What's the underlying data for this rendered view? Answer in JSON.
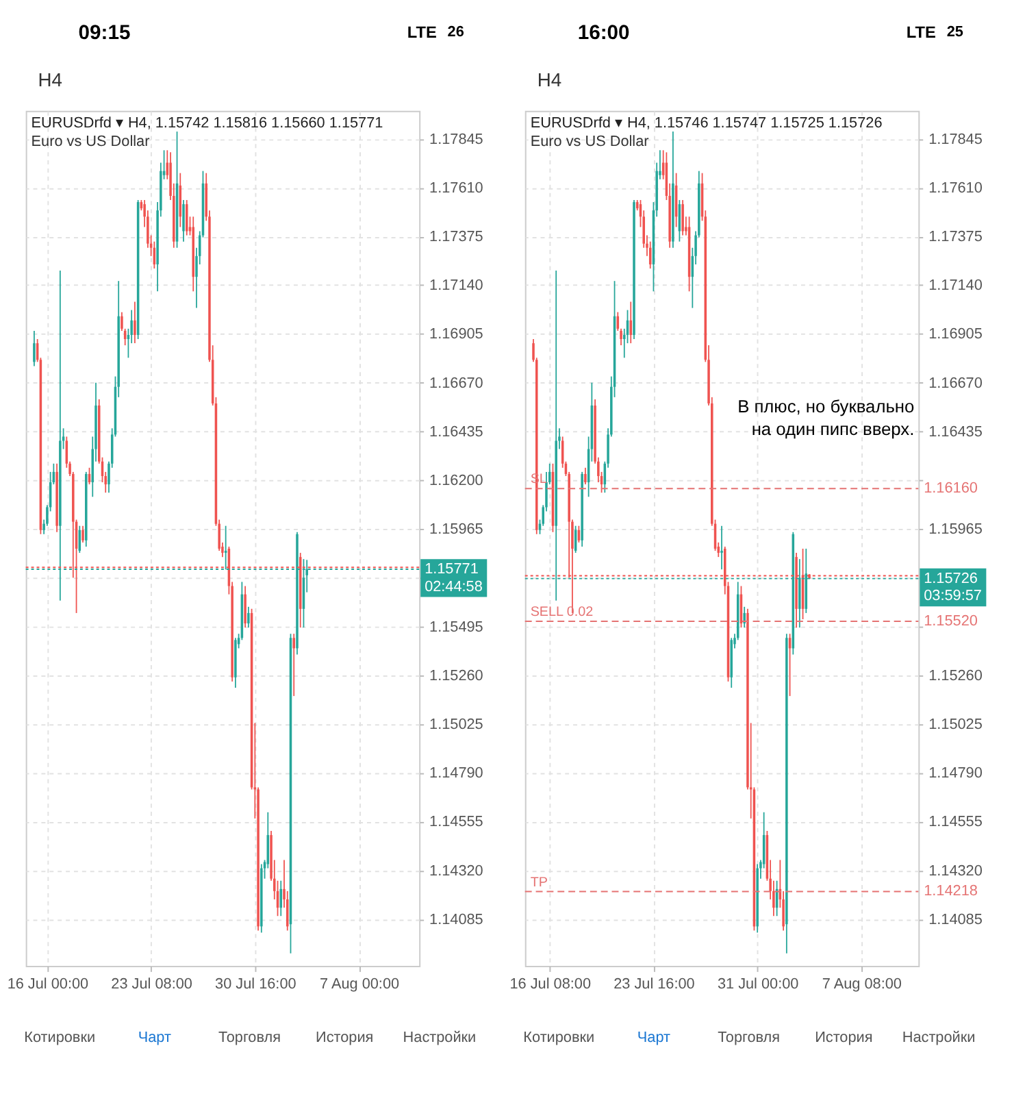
{
  "chart_data": [
    {
      "type": "candlestick",
      "title": "EURUSDrfd ▾ H4, 1.15742 1.15816 1.15660 1.15771",
      "subtitle": "Euro vs US Dollar",
      "categories": [
        null,
        null,
        null,
        null,
        "16 Jul 00:00",
        null,
        null,
        null,
        null,
        null,
        null,
        null,
        null,
        null,
        null,
        null,
        null,
        null,
        null,
        null,
        null,
        null,
        null,
        null,
        null,
        null,
        null,
        null,
        null,
        null,
        null,
        null,
        null,
        null,
        null,
        null,
        "23 Jul 08:00",
        null,
        null,
        null,
        null,
        null,
        null,
        null,
        null,
        null,
        null,
        null,
        null,
        null,
        null,
        null,
        null,
        null,
        null,
        null,
        null,
        null,
        null,
        null,
        null,
        null,
        null,
        null,
        null,
        null,
        null,
        null,
        "30 Jul 16:00",
        null,
        null,
        null,
        null,
        null,
        null,
        null,
        null,
        null,
        null,
        null,
        null,
        null,
        null,
        null,
        null,
        null,
        null,
        null,
        null,
        null,
        null,
        null,
        null,
        null,
        null,
        null,
        null,
        null,
        null,
        null,
        "7 Aug 00:00",
        null,
        null,
        null,
        null,
        null,
        null,
        null,
        null,
        null,
        null,
        null,
        null,
        null,
        null,
        null,
        null
      ],
      "ohlc": [
        [
          1.1677,
          1.1692,
          1.1675,
          1.1686
        ],
        [
          1.1686,
          1.1688,
          1.1677,
          1.1678
        ],
        [
          1.1678,
          1.1679,
          1.1594,
          1.1596
        ],
        [
          1.1596,
          1.1601,
          1.1594,
          1.1599
        ],
        [
          1.1599,
          1.1608,
          1.1598,
          1.1607
        ],
        [
          1.1607,
          1.1624,
          1.1605,
          1.1619
        ],
        [
          1.1619,
          1.1628,
          1.1618,
          1.1624
        ],
        [
          1.1624,
          1.1628,
          1.1595,
          1.1598
        ],
        [
          1.1598,
          1.1721,
          1.1562,
          1.1639
        ],
        [
          1.1639,
          1.1645,
          1.1635,
          1.1641
        ],
        [
          1.1639,
          1.1641,
          1.1626,
          1.1628
        ],
        [
          1.1628,
          1.1629,
          1.1622,
          1.1623
        ],
        [
          1.1623,
          1.1624,
          1.1573,
          1.16
        ],
        [
          1.16,
          1.1601,
          1.1556,
          1.1587
        ],
        [
          1.1586,
          1.1598,
          1.1585,
          1.1596
        ],
        [
          1.1596,
          1.1598,
          1.159,
          1.1591
        ],
        [
          1.1591,
          1.1624,
          1.1588,
          1.1623
        ],
        [
          1.1623,
          1.1626,
          1.1618,
          1.1619
        ],
        [
          1.1619,
          1.1641,
          1.1612,
          1.1635
        ],
        [
          1.1635,
          1.1667,
          1.1629,
          1.1656
        ],
        [
          1.1656,
          1.1659,
          1.1628,
          1.1629
        ],
        [
          1.1629,
          1.1631,
          1.1619,
          1.1622
        ],
        [
          1.1622,
          1.1624,
          1.1614,
          1.1618
        ],
        [
          1.1618,
          1.1629,
          1.1614,
          1.1628
        ],
        [
          1.1628,
          1.1645,
          1.1626,
          1.1642
        ],
        [
          1.1642,
          1.167,
          1.1641,
          1.1665
        ],
        [
          1.1665,
          1.1716,
          1.166,
          1.1699
        ],
        [
          1.1699,
          1.1701,
          1.1692,
          1.1693
        ],
        [
          1.1692,
          1.1693,
          1.1685,
          1.1688
        ],
        [
          1.1688,
          1.1693,
          1.1679,
          1.169
        ],
        [
          1.169,
          1.1702,
          1.1686,
          1.1697
        ],
        [
          1.1697,
          1.1706,
          1.1686,
          1.169
        ],
        [
          1.169,
          1.1755,
          1.1688,
          1.1754
        ],
        [
          1.1754,
          1.1755,
          1.175,
          1.1751
        ],
        [
          1.1753,
          1.1755,
          1.1742,
          1.1747
        ],
        [
          1.1747,
          1.175,
          1.1732,
          1.1734
        ],
        [
          1.1734,
          1.1738,
          1.1728,
          1.1732
        ],
        [
          1.1732,
          1.1735,
          1.1722,
          1.1724
        ],
        [
          1.1724,
          1.1754,
          1.1711,
          1.175
        ],
        [
          1.175,
          1.1773,
          1.1747,
          1.1769
        ],
        [
          1.1767,
          1.1779,
          1.1765,
          1.1769
        ],
        [
          1.1773,
          1.1779,
          1.1765,
          1.1767
        ],
        [
          1.1773,
          1.1778,
          1.1755,
          1.1757
        ],
        [
          1.1757,
          1.1763,
          1.1732,
          1.1735
        ],
        [
          1.1735,
          1.1788,
          1.1732,
          1.1763
        ],
        [
          1.1762,
          1.1768,
          1.1742,
          1.1747
        ],
        [
          1.174,
          1.1755,
          1.1735,
          1.1753
        ],
        [
          1.1753,
          1.1755,
          1.1738,
          1.174
        ],
        [
          1.1742,
          1.1747,
          1.1738,
          1.174
        ],
        [
          1.1742,
          1.1747,
          1.1711,
          1.1718
        ],
        [
          1.1718,
          1.1732,
          1.1703,
          1.1728
        ],
        [
          1.1728,
          1.174,
          1.1724,
          1.1738
        ],
        [
          1.1738,
          1.1769,
          1.1737,
          1.1763
        ],
        [
          1.1763,
          1.1768,
          1.1745,
          1.1747
        ],
        [
          1.1747,
          1.175,
          1.1677,
          1.1678
        ],
        [
          1.1678,
          1.1685,
          1.1656,
          1.1657
        ],
        [
          1.1657,
          1.166,
          1.1598,
          1.1599
        ],
        [
          1.1599,
          1.1601,
          1.1586,
          1.1587
        ],
        [
          1.1588,
          1.159,
          1.1583,
          1.1585
        ],
        [
          1.1585,
          1.1598,
          1.1577,
          1.1586
        ],
        [
          1.1587,
          1.1588,
          1.1565,
          1.1569
        ],
        [
          1.1569,
          1.1571,
          1.1523,
          1.1525
        ],
        [
          1.1525,
          1.1544,
          1.152,
          1.1543
        ],
        [
          1.1541,
          1.1546,
          1.1539,
          1.1544
        ],
        [
          1.1544,
          1.1571,
          1.1543,
          1.1565
        ],
        [
          1.1565,
          1.1569,
          1.1549,
          1.1551
        ],
        [
          1.1551,
          1.1559,
          1.1549,
          1.1556
        ],
        [
          1.1556,
          1.1558,
          1.1471,
          1.1472
        ],
        [
          1.1472,
          1.1503,
          1.1457,
          1.1471
        ],
        [
          1.1471,
          1.1472,
          1.1403,
          1.1405
        ],
        [
          1.1405,
          1.1435,
          1.1402,
          1.1433
        ],
        [
          1.1433,
          1.1437,
          1.1428,
          1.1436
        ],
        [
          1.1435,
          1.146,
          1.1433,
          1.1449
        ],
        [
          1.1449,
          1.1451,
          1.1427,
          1.1428
        ],
        [
          1.1428,
          1.1437,
          1.1418,
          1.1422
        ],
        [
          1.1422,
          1.1427,
          1.141,
          1.1414
        ],
        [
          1.1414,
          1.1427,
          1.141,
          1.1423
        ],
        [
          1.1423,
          1.1437,
          1.1414,
          1.1418
        ],
        [
          1.1418,
          1.1422,
          1.1403,
          1.1405
        ],
        [
          1.1406,
          1.1546,
          1.1392,
          1.1544
        ],
        [
          1.1544,
          1.1546,
          1.1516,
          1.1539
        ],
        [
          1.1539,
          1.1595,
          1.1536,
          1.1594
        ],
        [
          1.1583,
          1.1585,
          1.1549,
          1.1558
        ],
        [
          1.1558,
          1.1582,
          1.1549,
          1.1573
        ],
        [
          1.15742,
          1.15816,
          1.1566,
          1.15771
        ],
        null,
        null,
        null,
        null,
        null,
        null,
        null,
        null,
        null,
        null,
        null,
        null,
        null,
        null,
        null,
        null,
        null,
        null,
        null,
        null,
        null,
        null,
        null,
        null,
        null,
        null,
        null,
        null,
        null,
        null,
        null,
        null
      ],
      "colors": [
        "#26a69a",
        "#ef5350",
        "#ef5350",
        "#26a69a",
        "#26a69a",
        "#26a69a",
        "#26a69a",
        "#ef5350",
        "#26a69a",
        "#26a69a",
        "#ef5350",
        "#ef5350",
        "#ef5350",
        "#ef5350",
        "#26a69a",
        "#ef5350",
        "#26a69a",
        "#ef5350",
        "#26a69a",
        "#26a69a",
        "#ef5350",
        "#ef5350",
        "#ef5350",
        "#26a69a",
        "#26a69a",
        "#26a69a",
        "#26a69a",
        "#ef5350",
        "#ef5350",
        "#26a69a",
        "#26a69a",
        "#ef5350",
        "#26a69a",
        "#ef5350",
        "#ef5350",
        "#ef5350",
        "#ef5350",
        "#ef5350",
        "#26a69a",
        "#26a69a",
        "#26a69a",
        "#ef5350",
        "#ef5350",
        "#ef5350",
        "#26a69a",
        "#ef5350",
        "#26a69a",
        "#ef5350",
        "#ef5350",
        "#ef5350",
        "#26a69a",
        "#26a69a",
        "#26a69a",
        "#ef5350",
        "#ef5350",
        "#ef5350",
        "#ef5350",
        "#ef5350",
        "#ef5350",
        "#26a69a",
        "#ef5350",
        "#ef5350",
        "#26a69a",
        "#26a69a",
        "#26a69a",
        "#ef5350",
        "#26a69a",
        "#ef5350",
        "#ef5350",
        "#ef5350",
        "#26a69a",
        "#26a69a",
        "#26a69a",
        "#ef5350",
        "#ef5350",
        "#ef5350",
        "#26a69a",
        "#ef5350",
        "#ef5350",
        "#26a69a",
        "#ef5350",
        "#26a69a",
        "#ef5350",
        "#26a69a",
        "#26a69a",
        null,
        null,
        null,
        null,
        null,
        null,
        null,
        null,
        null,
        null,
        null,
        null,
        null,
        null,
        null,
        null,
        null,
        null,
        null,
        null,
        null,
        null,
        null,
        null,
        null,
        null,
        null,
        null,
        null,
        null,
        null,
        null
      ],
      "ylim": [
        1.1386,
        1.1798
      ],
      "yticks": [
        1.17845,
        {
          "value": 1.1761,
          "label": "1.17610"
        },
        1.17375,
        {
          "value": 1.1714,
          "label": "1.17140"
        },
        1.16905,
        {
          "value": 1.1667,
          "label": "1.16670"
        },
        1.16435,
        {
          "value": 1.162,
          "label": "1.16200"
        },
        1.15965,
        {
          "value": 1.1573,
          "label": null
        },
        1.15495,
        {
          "value": 1.1526,
          "label": "1.15260"
        },
        1.15025,
        {
          "value": 1.1479,
          "label": "1.14790"
        },
        1.14555,
        {
          "value": 1.1432,
          "label": "1.14320"
        },
        1.14085
      ],
      "grid": true,
      "ref_lines": [
        {
          "axis": "y",
          "value": 1.1578,
          "color": "#ef5350",
          "line_style": "dotted"
        },
        {
          "axis": "y",
          "value": 1.15771,
          "label": "1.15771",
          "color": "#26a69a",
          "line_style": "dotted"
        }
      ],
      "annotations": [
        "09:15",
        "LTE",
        "26",
        "H4",
        "Котировки",
        "Чарт",
        "Торговля",
        "История",
        "Настройки",
        "02:44:58"
      ]
    },
    {
      "type": "candlestick",
      "title": "EURUSDrfd ▾ H4, 1.15746 1.15747 1.15725 1.15726",
      "subtitle": "Euro vs US Dollar",
      "categories": [
        null,
        null,
        null,
        null,
        null,
        "16 Jul 08:00",
        null,
        null,
        null,
        null,
        null,
        null,
        null,
        null,
        null,
        null,
        null,
        null,
        null,
        null,
        null,
        null,
        null,
        null,
        null,
        null,
        null,
        null,
        null,
        null,
        null,
        null,
        null,
        null,
        null,
        null,
        null,
        "23 Jul 16:00",
        null,
        null,
        null,
        null,
        null,
        null,
        null,
        null,
        null,
        null,
        null,
        null,
        null,
        null,
        null,
        null,
        null,
        null,
        null,
        null,
        null,
        null,
        null,
        null,
        null,
        null,
        null,
        null,
        null,
        null,
        null,
        "31 Jul 00:00",
        null,
        null,
        null,
        null,
        null,
        null,
        null,
        null,
        null,
        null,
        null,
        null,
        null,
        null,
        null,
        null,
        null,
        null,
        null,
        null,
        null,
        null,
        null,
        null,
        null,
        null,
        null,
        null,
        null,
        null,
        null,
        "7 Aug 08:00",
        null,
        null,
        null,
        null,
        null,
        null,
        null,
        null,
        null,
        null,
        null,
        null,
        null,
        null,
        null
      ],
      "ohlc": [
        [
          1.1686,
          1.1688,
          1.1677,
          1.1678
        ],
        [
          1.1678,
          1.1679,
          1.1594,
          1.1596
        ],
        [
          1.1596,
          1.1601,
          1.1594,
          1.1599
        ],
        [
          1.1599,
          1.1608,
          1.1598,
          1.1607
        ],
        [
          1.1607,
          1.1624,
          1.1605,
          1.1619
        ],
        [
          1.1619,
          1.1628,
          1.1618,
          1.1624
        ],
        [
          1.1624,
          1.1628,
          1.1595,
          1.1598
        ],
        [
          1.1598,
          1.1721,
          1.1562,
          1.1639
        ],
        [
          1.1639,
          1.1645,
          1.1635,
          1.1641
        ],
        [
          1.1639,
          1.1641,
          1.1626,
          1.1628
        ],
        [
          1.1628,
          1.1629,
          1.1622,
          1.1623
        ],
        [
          1.1623,
          1.1624,
          1.1573,
          1.16
        ],
        [
          1.16,
          1.1601,
          1.1556,
          1.1587
        ],
        [
          1.1586,
          1.1598,
          1.1585,
          1.1596
        ],
        [
          1.1596,
          1.1598,
          1.159,
          1.1591
        ],
        [
          1.1591,
          1.1624,
          1.1588,
          1.1623
        ],
        [
          1.1623,
          1.1626,
          1.1618,
          1.1619
        ],
        [
          1.1619,
          1.1641,
          1.1612,
          1.1635
        ],
        [
          1.1635,
          1.1667,
          1.1629,
          1.1656
        ],
        [
          1.1656,
          1.1659,
          1.1628,
          1.1629
        ],
        [
          1.1629,
          1.1631,
          1.1619,
          1.1622
        ],
        [
          1.1622,
          1.1624,
          1.1614,
          1.1618
        ],
        [
          1.1618,
          1.1629,
          1.1614,
          1.1628
        ],
        [
          1.1628,
          1.1645,
          1.1626,
          1.1642
        ],
        [
          1.1642,
          1.167,
          1.1641,
          1.1665
        ],
        [
          1.1665,
          1.1716,
          1.166,
          1.1699
        ],
        [
          1.1699,
          1.1701,
          1.1692,
          1.1693
        ],
        [
          1.1692,
          1.1693,
          1.1685,
          1.1688
        ],
        [
          1.1688,
          1.1693,
          1.1679,
          1.169
        ],
        [
          1.169,
          1.1702,
          1.1686,
          1.1697
        ],
        [
          1.1697,
          1.1706,
          1.1686,
          1.169
        ],
        [
          1.169,
          1.1755,
          1.1688,
          1.1754
        ],
        [
          1.1754,
          1.1755,
          1.175,
          1.1751
        ],
        [
          1.1753,
          1.1755,
          1.1742,
          1.1747
        ],
        [
          1.1747,
          1.175,
          1.1732,
          1.1734
        ],
        [
          1.1734,
          1.1738,
          1.1728,
          1.1732
        ],
        [
          1.1732,
          1.1735,
          1.1722,
          1.1724
        ],
        [
          1.1724,
          1.1754,
          1.1711,
          1.175
        ],
        [
          1.175,
          1.1773,
          1.1747,
          1.1769
        ],
        [
          1.1767,
          1.1779,
          1.1765,
          1.1769
        ],
        [
          1.1773,
          1.1779,
          1.1765,
          1.1767
        ],
        [
          1.1773,
          1.1778,
          1.1755,
          1.1757
        ],
        [
          1.1757,
          1.1763,
          1.1732,
          1.1735
        ],
        [
          1.1735,
          1.1788,
          1.1732,
          1.1763
        ],
        [
          1.1762,
          1.1768,
          1.1742,
          1.1747
        ],
        [
          1.174,
          1.1755,
          1.1735,
          1.1753
        ],
        [
          1.1753,
          1.1755,
          1.1738,
          1.174
        ],
        [
          1.1742,
          1.1747,
          1.1738,
          1.174
        ],
        [
          1.1742,
          1.1747,
          1.1711,
          1.1718
        ],
        [
          1.1718,
          1.1732,
          1.1703,
          1.1728
        ],
        [
          1.1728,
          1.174,
          1.1724,
          1.1738
        ],
        [
          1.1738,
          1.1769,
          1.1737,
          1.1763
        ],
        [
          1.1763,
          1.1768,
          1.1745,
          1.1747
        ],
        [
          1.1747,
          1.175,
          1.1677,
          1.1678
        ],
        [
          1.1678,
          1.1685,
          1.1656,
          1.1657
        ],
        [
          1.1657,
          1.166,
          1.1598,
          1.1599
        ],
        [
          1.1599,
          1.1601,
          1.1586,
          1.1587
        ],
        [
          1.1588,
          1.159,
          1.1583,
          1.1585
        ],
        [
          1.1585,
          1.1598,
          1.1577,
          1.1586
        ],
        [
          1.1587,
          1.1588,
          1.1565,
          1.1569
        ],
        [
          1.1569,
          1.1571,
          1.1523,
          1.1525
        ],
        [
          1.1525,
          1.1544,
          1.152,
          1.1543
        ],
        [
          1.1541,
          1.1546,
          1.1539,
          1.1544
        ],
        [
          1.1544,
          1.1571,
          1.1543,
          1.1565
        ],
        [
          1.1565,
          1.1569,
          1.1549,
          1.1551
        ],
        [
          1.1551,
          1.1559,
          1.1549,
          1.1556
        ],
        [
          1.1556,
          1.1558,
          1.1471,
          1.1472
        ],
        [
          1.1472,
          1.1503,
          1.1457,
          1.1471
        ],
        [
          1.1471,
          1.1472,
          1.1403,
          1.1405
        ],
        [
          1.1405,
          1.1435,
          1.1402,
          1.1433
        ],
        [
          1.1433,
          1.1437,
          1.1428,
          1.1436
        ],
        [
          1.1435,
          1.146,
          1.1433,
          1.1449
        ],
        [
          1.1449,
          1.1451,
          1.1427,
          1.1428
        ],
        [
          1.1428,
          1.1437,
          1.1418,
          1.1422
        ],
        [
          1.1422,
          1.1427,
          1.141,
          1.1414
        ],
        [
          1.1414,
          1.1427,
          1.141,
          1.1423
        ],
        [
          1.1423,
          1.1437,
          1.1414,
          1.1418
        ],
        [
          1.1418,
          1.1422,
          1.1403,
          1.1405
        ],
        [
          1.1406,
          1.1546,
          1.1392,
          1.1544
        ],
        [
          1.1544,
          1.1546,
          1.1516,
          1.1539
        ],
        [
          1.1539,
          1.1595,
          1.1536,
          1.1594
        ],
        [
          1.1583,
          1.1585,
          1.1549,
          1.1558
        ],
        [
          1.1558,
          1.1582,
          1.1549,
          1.1573
        ],
        [
          1.15742,
          1.1587,
          1.1553,
          1.1558
        ],
        [
          1.1558,
          1.1587,
          1.1556,
          1.1575
        ],
        [
          1.15746,
          1.15747,
          1.15725,
          1.15726
        ],
        null,
        null,
        null,
        null,
        null,
        null,
        null,
        null,
        null,
        null,
        null,
        null,
        null,
        null,
        null,
        null,
        null,
        null,
        null,
        null,
        null,
        null,
        null,
        null,
        null,
        null,
        null,
        null,
        null,
        null,
        null
      ],
      "colors": [
        "#ef5350",
        "#ef5350",
        "#26a69a",
        "#26a69a",
        "#26a69a",
        "#26a69a",
        "#ef5350",
        "#26a69a",
        "#26a69a",
        "#ef5350",
        "#ef5350",
        "#ef5350",
        "#ef5350",
        "#26a69a",
        "#ef5350",
        "#26a69a",
        "#ef5350",
        "#26a69a",
        "#26a69a",
        "#ef5350",
        "#ef5350",
        "#ef5350",
        "#26a69a",
        "#26a69a",
        "#26a69a",
        "#26a69a",
        "#ef5350",
        "#ef5350",
        "#26a69a",
        "#26a69a",
        "#ef5350",
        "#26a69a",
        "#ef5350",
        "#ef5350",
        "#ef5350",
        "#ef5350",
        "#ef5350",
        "#26a69a",
        "#26a69a",
        "#26a69a",
        "#ef5350",
        "#ef5350",
        "#ef5350",
        "#26a69a",
        "#ef5350",
        "#26a69a",
        "#ef5350",
        "#ef5350",
        "#ef5350",
        "#26a69a",
        "#26a69a",
        "#26a69a",
        "#ef5350",
        "#ef5350",
        "#ef5350",
        "#ef5350",
        "#ef5350",
        "#ef5350",
        "#26a69a",
        "#ef5350",
        "#ef5350",
        "#26a69a",
        "#26a69a",
        "#26a69a",
        "#ef5350",
        "#26a69a",
        "#ef5350",
        "#ef5350",
        "#ef5350",
        "#26a69a",
        "#26a69a",
        "#26a69a",
        "#ef5350",
        "#ef5350",
        "#ef5350",
        "#26a69a",
        "#ef5350",
        "#ef5350",
        "#26a69a",
        "#ef5350",
        "#26a69a",
        "#ef5350",
        "#26a69a",
        "#ef5350",
        "#26a69a",
        "#ef5350",
        null,
        null,
        null,
        null,
        null,
        null,
        null,
        null,
        null,
        null,
        null,
        null,
        null,
        null,
        null,
        null,
        null,
        null,
        null,
        null,
        null,
        null,
        null,
        null,
        null,
        null,
        null,
        null,
        null,
        null,
        null
      ],
      "ylim": [
        1.1386,
        1.1798
      ],
      "yticks": [
        1.17845,
        {
          "value": 1.1761,
          "label": "1.17610"
        },
        1.17375,
        {
          "value": 1.1714,
          "label": "1.17140"
        },
        1.16905,
        {
          "value": 1.1667,
          "label": "1.16670"
        },
        1.16435,
        {
          "value": 1.162,
          "label": null
        },
        1.15965,
        {
          "value": 1.1573,
          "label": null
        },
        {
          "value": 1.15495,
          "label": null
        },
        {
          "value": 1.1526,
          "label": "1.15260"
        },
        1.15025,
        {
          "value": 1.1479,
          "label": "1.14790"
        },
        1.14555,
        {
          "value": 1.1432,
          "label": "1.14320"
        },
        1.14085
      ],
      "grid": true,
      "ref_lines": [
        {
          "axis": "y",
          "value": 1.1616,
          "label": "1.16160",
          "color": "#e57373",
          "line_style": "dashed"
        },
        {
          "axis": "y",
          "value": 1.1552,
          "label": "1.15520",
          "color": "#e57373",
          "line_style": "dashed"
        },
        {
          "axis": "y",
          "value": 1.14218,
          "label": "1.14218",
          "color": "#e57373",
          "line_style": "dashed"
        },
        {
          "axis": "y",
          "value": 1.1574,
          "color": "#ef5350",
          "line_style": "dotted"
        },
        {
          "axis": "y",
          "value": 1.15726,
          "label": "1.15726",
          "color": "#26a69a",
          "line_style": "dotted"
        }
      ],
      "annotations": [
        "16:00",
        "LTE",
        "25",
        "H4",
        "Котировки",
        "Чарт",
        "Торговля",
        "История",
        "Настройки",
        "03:59:57",
        "В плюс, но буквально\nна один пипс вверх.",
        "SL",
        "SELL 0.02",
        "TP"
      ]
    }
  ]
}
